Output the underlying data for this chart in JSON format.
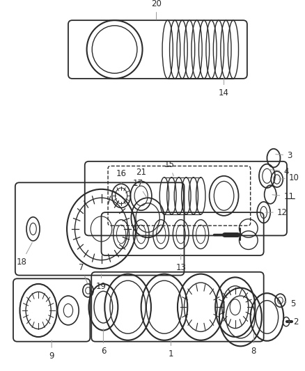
{
  "bg_color": "#ffffff",
  "line_color": "#2a2a2a",
  "label_color": "#555555",
  "figsize": [
    4.38,
    5.33
  ],
  "dpi": 100
}
